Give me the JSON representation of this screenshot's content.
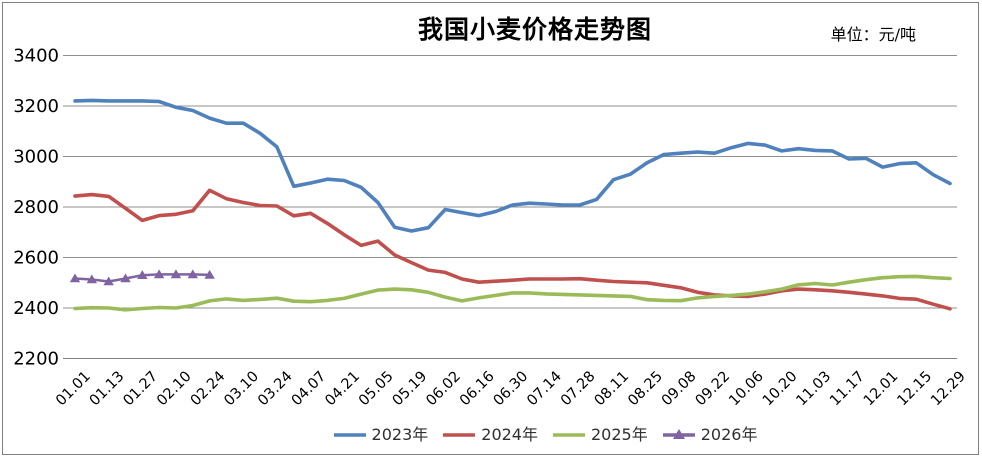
{
  "chart_data": {
    "type": "line",
    "title": "我国小麦价格走势图",
    "unit": "单位：元/吨",
    "ylabel": "",
    "xlabel": "",
    "ylim": [
      2200,
      3400
    ],
    "y_ticks": [
      3400,
      3200,
      3000,
      2800,
      2600,
      2400,
      2200
    ],
    "grid": true,
    "legend_position": "bottom",
    "x_label_every": 2,
    "points_per_series": 53,
    "x_labels": [
      "01.01",
      "01.13",
      "01.27",
      "02.10",
      "02.24",
      "03.10",
      "03.24",
      "04.07",
      "04.21",
      "05.05",
      "05.19",
      "06.02",
      "06.16",
      "06.30",
      "07.14",
      "07.28",
      "08.11",
      "08.25",
      "09.08",
      "09.22",
      "10.06",
      "10.20",
      "11.03",
      "11.17",
      "12.01",
      "12.15",
      "12.29"
    ],
    "series": [
      {
        "name": "2023年",
        "color": "#4F81BD",
        "marker": "none",
        "values": [
          3220,
          3222,
          3220,
          3220,
          3220,
          3218,
          3195,
          3182,
          3152,
          3132,
          3132,
          3092,
          3038,
          2882,
          2895,
          2910,
          2905,
          2878,
          2818,
          2720,
          2705,
          2718,
          2790,
          2778,
          2766,
          2782,
          2808,
          2815,
          2812,
          2808,
          2808,
          2830,
          2908,
          2930,
          2975,
          3008,
          3013,
          3018,
          3013,
          3035,
          3052,
          3045,
          3022,
          3031,
          3024,
          3022,
          2990,
          2993,
          2958,
          2972,
          2975,
          2928,
          2893
        ]
      },
      {
        "name": "2024年",
        "color": "#C0504D",
        "marker": "none",
        "values": [
          2843,
          2849,
          2842,
          2795,
          2747,
          2766,
          2771,
          2785,
          2866,
          2833,
          2818,
          2806,
          2804,
          2765,
          2775,
          2735,
          2690,
          2648,
          2665,
          2610,
          2580,
          2550,
          2541,
          2515,
          2502,
          2506,
          2510,
          2515,
          2515,
          2515,
          2516,
          2510,
          2505,
          2502,
          2500,
          2490,
          2480,
          2462,
          2452,
          2448,
          2446,
          2455,
          2468,
          2475,
          2472,
          2468,
          2462,
          2455,
          2448,
          2438,
          2435,
          2415,
          2397
        ]
      },
      {
        "name": "2025年",
        "color": "#9BBB59",
        "marker": "none",
        "values": [
          2398,
          2401,
          2400,
          2393,
          2398,
          2402,
          2400,
          2410,
          2428,
          2436,
          2430,
          2434,
          2439,
          2427,
          2425,
          2430,
          2438,
          2455,
          2471,
          2475,
          2472,
          2462,
          2443,
          2428,
          2440,
          2450,
          2460,
          2460,
          2456,
          2454,
          2452,
          2450,
          2448,
          2446,
          2433,
          2430,
          2429,
          2440,
          2446,
          2450,
          2455,
          2464,
          2475,
          2492,
          2497,
          2491,
          2502,
          2512,
          2520,
          2524,
          2525,
          2520,
          2517
        ]
      },
      {
        "name": "2026年",
        "color": "#8064A2",
        "marker": "triangle",
        "values": [
          2517,
          2513,
          2505,
          2517,
          2530,
          2533,
          2533,
          2533,
          2531
        ]
      }
    ]
  }
}
